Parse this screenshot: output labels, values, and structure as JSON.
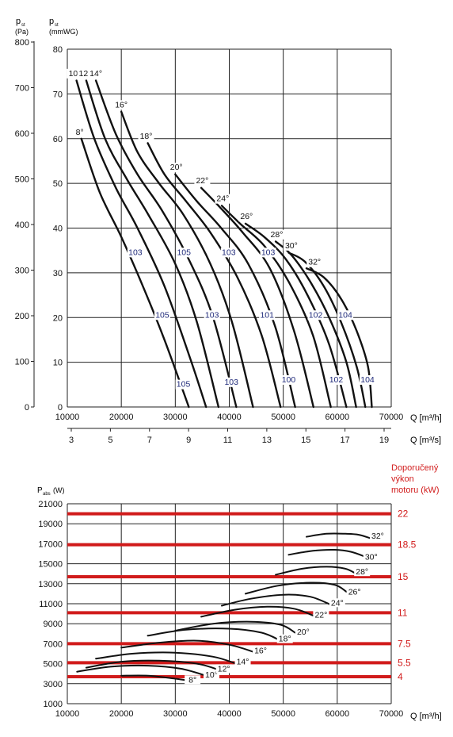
{
  "colors": {
    "curve": "#111111",
    "grid": "#222222",
    "motor_line": "#d11b1b",
    "noise_label": "#1f2a7a"
  },
  "chart_data": [
    {
      "type": "line",
      "title": "",
      "ylabel_pa": "p_st (Pa)",
      "ylabel_mmwg": "p_st (mmWG)",
      "xlabel": "Q [m³/h]",
      "xlabel_secondary": "Q [m³/s]",
      "xlim": [
        10000,
        70000
      ],
      "ylim_pa": [
        0,
        800
      ],
      "ylim_mmwg": [
        0,
        80
      ],
      "grid": true,
      "x_ticks": [
        "10000",
        "20000",
        "30000",
        "40000",
        "50000",
        "60000",
        "70000"
      ],
      "y_ticks_pa": [
        "0",
        "100",
        "200",
        "300",
        "400",
        "500",
        "600",
        "700",
        "800"
      ],
      "y_ticks_mmwg": [
        "0",
        "10",
        "20",
        "30",
        "40",
        "50",
        "60",
        "70",
        "80"
      ],
      "x2_ticks": [
        "3",
        "5",
        "7",
        "9",
        "11",
        "13",
        "15",
        "17",
        "19"
      ],
      "y_axis_label_lines": [
        "p",
        "st",
        "(Pa)"
      ],
      "y2_axis_label_lines": [
        "p",
        "st",
        "(mmWG)"
      ],
      "series": [
        {
          "name": "8°",
          "x": [
            12600,
            16000,
            20000,
            24000,
            28000,
            32500
          ],
          "y": [
            600,
            480,
            380,
            270,
            150,
            0
          ],
          "label_at": [
            12300,
            608
          ]
        },
        {
          "name": "10°",
          "x": [
            11700,
            15000,
            19000,
            23000,
            28000,
            33000,
            35700
          ],
          "y": [
            730,
            600,
            490,
            400,
            270,
            100,
            0
          ],
          "label_at": [
            11400,
            740
          ]
        },
        {
          "name": "12°",
          "x": [
            13500,
            17000,
            21000,
            25000,
            30000,
            34000,
            38000
          ],
          "y": [
            730,
            600,
            510,
            430,
            320,
            190,
            0
          ],
          "label_at": [
            13300,
            740
          ]
        },
        {
          "name": "14°",
          "x": [
            15300,
            19000,
            23000,
            27500,
            32500,
            37000,
            41300
          ],
          "y": [
            730,
            610,
            520,
            440,
            330,
            200,
            0
          ],
          "label_at": [
            15300,
            740
          ]
        },
        {
          "name": "16°",
          "x": [
            20000,
            23000,
            27000,
            31500,
            36500,
            40500,
            44400
          ],
          "y": [
            660,
            570,
            500,
            430,
            320,
            190,
            0
          ],
          "label_at": [
            20000,
            670
          ]
        },
        {
          "name": "18°",
          "x": [
            24900,
            28000,
            32000,
            36500,
            41500,
            46000,
            49500
          ],
          "y": [
            590,
            520,
            460,
            390,
            290,
            160,
            0
          ],
          "label_at": [
            24600,
            600
          ]
        },
        {
          "name": "20°",
          "x": [
            30000,
            34000,
            38500,
            43500,
            48500,
            52200
          ],
          "y": [
            520,
            460,
            400,
            320,
            180,
            0
          ],
          "label_at": [
            30200,
            530
          ]
        },
        {
          "name": "22°",
          "x": [
            34800,
            38000,
            42500,
            47500,
            52000,
            55600
          ],
          "y": [
            490,
            450,
            390,
            310,
            170,
            0
          ],
          "label_at": [
            35000,
            500
          ]
        },
        {
          "name": "24°",
          "x": [
            38600,
            42000,
            46500,
            51000,
            55500,
            58800
          ],
          "y": [
            450,
            410,
            360,
            280,
            160,
            0
          ],
          "label_at": [
            38800,
            460
          ]
        },
        {
          "name": "26°",
          "x": [
            43000,
            46500,
            50500,
            54500,
            58500,
            61700
          ],
          "y": [
            410,
            380,
            330,
            250,
            140,
            0
          ],
          "label_at": [
            43200,
            420
          ]
        },
        {
          "name": "28°",
          "x": [
            48600,
            51500,
            55000,
            58500,
            61700,
            63500
          ],
          "y": [
            370,
            340,
            280,
            200,
            100,
            0
          ],
          "label_at": [
            48800,
            380
          ]
        },
        {
          "name": "30°",
          "x": [
            51000,
            54000,
            57500,
            60700,
            63600,
            65200
          ],
          "y": [
            345,
            325,
            270,
            190,
            90,
            0
          ],
          "label_at": [
            51500,
            355
          ]
        },
        {
          "name": "32°",
          "x": [
            54300,
            57500,
            60800,
            63600,
            65700,
            66400
          ],
          "y": [
            310,
            290,
            240,
            170,
            90,
            0
          ],
          "label_at": [
            55800,
            318
          ]
        }
      ],
      "noise_labels": [
        {
          "text": "103",
          "x": 22600,
          "y": 340
        },
        {
          "text": "105",
          "x": 31600,
          "y": 340
        },
        {
          "text": "103",
          "x": 39900,
          "y": 340
        },
        {
          "text": "103",
          "x": 47200,
          "y": 340
        },
        {
          "text": "105",
          "x": 27600,
          "y": 200
        },
        {
          "text": "103",
          "x": 36800,
          "y": 200
        },
        {
          "text": "101",
          "x": 47000,
          "y": 200
        },
        {
          "text": "102",
          "x": 56000,
          "y": 200
        },
        {
          "text": "104",
          "x": 61500,
          "y": 200
        },
        {
          "text": "105",
          "x": 31500,
          "y": 45
        },
        {
          "text": "103",
          "x": 40400,
          "y": 50
        },
        {
          "text": "100",
          "x": 51000,
          "y": 55
        },
        {
          "text": "102",
          "x": 59800,
          "y": 55
        },
        {
          "text": "104",
          "x": 65600,
          "y": 55
        }
      ]
    },
    {
      "type": "line",
      "title": "",
      "ylabel": "P_abs (W)",
      "xlabel": "Q [m³/h]",
      "xlim": [
        10000,
        70000
      ],
      "ylim": [
        1000,
        21000
      ],
      "grid": true,
      "x_ticks": [
        "10000",
        "20000",
        "30000",
        "40000",
        "50000",
        "60000",
        "70000"
      ],
      "y_ticks": [
        "1000",
        "3000",
        "5000",
        "7000",
        "9000",
        "11000",
        "13000",
        "15000",
        "17000",
        "19000",
        "21000"
      ],
      "y_axis_label": "P",
      "y_axis_label_sub": "abs",
      "y_axis_label_unit": "(W)",
      "motor_title": [
        "Doporučený",
        "výkon",
        "motoru (kW)"
      ],
      "motor_lines": [
        {
          "label": "22",
          "w": 20000
        },
        {
          "label": "18.5",
          "w": 16900
        },
        {
          "label": "15",
          "w": 13700
        },
        {
          "label": "11",
          "w": 10100
        },
        {
          "label": "7.5",
          "w": 7000
        },
        {
          "label": "5.5",
          "w": 5100
        },
        {
          "label": "4",
          "w": 3700
        }
      ],
      "series": [
        {
          "name": "8°",
          "x": [
            20000,
            25000,
            30000,
            32500
          ],
          "y": [
            3800,
            3800,
            3500,
            3300
          ],
          "label_at": [
            33200,
            3200
          ]
        },
        {
          "name": "10°",
          "x": [
            11800,
            18000,
            25000,
            31000,
            35700
          ],
          "y": [
            4200,
            4700,
            4800,
            4500,
            3800
          ],
          "label_at": [
            36700,
            3700
          ]
        },
        {
          "name": "12°",
          "x": [
            13500,
            20000,
            27000,
            34000,
            38000
          ],
          "y": [
            4600,
            5200,
            5300,
            5000,
            4400
          ],
          "label_at": [
            39000,
            4300
          ]
        },
        {
          "name": "14°",
          "x": [
            15300,
            22000,
            30000,
            37000,
            41300
          ],
          "y": [
            5500,
            6000,
            6100,
            5700,
            5000
          ],
          "label_at": [
            42500,
            5000
          ]
        },
        {
          "name": "16°",
          "x": [
            20000,
            27000,
            34000,
            40000,
            44400
          ],
          "y": [
            6600,
            7100,
            7300,
            6900,
            6200
          ],
          "label_at": [
            45800,
            6100
          ]
        },
        {
          "name": "18°",
          "x": [
            24900,
            32000,
            40000,
            46000,
            49500
          ],
          "y": [
            7800,
            8400,
            8500,
            8100,
            7300
          ],
          "label_at": [
            50300,
            7300
          ]
        },
        {
          "name": "20°",
          "x": [
            30000,
            37000,
            44000,
            49500,
            52200
          ],
          "y": [
            8300,
            9000,
            9200,
            8900,
            8100
          ],
          "label_at": [
            53700,
            8000
          ]
        },
        {
          "name": "22°",
          "x": [
            34800,
            41000,
            47000,
            52000,
            55600
          ],
          "y": [
            9700,
            10400,
            10700,
            10500,
            9800
          ],
          "label_at": [
            57000,
            9700
          ]
        },
        {
          "name": "24°",
          "x": [
            38600,
            44000,
            50000,
            55000,
            58800
          ],
          "y": [
            10800,
            11500,
            11900,
            11700,
            10900
          ],
          "label_at": [
            60000,
            10900
          ]
        },
        {
          "name": "26°",
          "x": [
            43000,
            49000,
            55000,
            59500,
            61700
          ],
          "y": [
            12000,
            12800,
            13100,
            12900,
            12200
          ],
          "label_at": [
            63200,
            12000
          ]
        },
        {
          "name": "28°",
          "x": [
            48600,
            53500,
            58000,
            61500,
            63500
          ],
          "y": [
            13900,
            14500,
            14700,
            14500,
            14000
          ],
          "label_at": [
            64600,
            14000
          ]
        },
        {
          "name": "30°",
          "x": [
            51000,
            55500,
            59500,
            62500,
            65200
          ],
          "y": [
            15900,
            16300,
            16400,
            16200,
            15700
          ],
          "label_at": [
            66300,
            15500
          ]
        },
        {
          "name": "32°",
          "x": [
            54300,
            58000,
            61500,
            64000,
            66400
          ],
          "y": [
            17700,
            18000,
            18000,
            17900,
            17500
          ],
          "label_at": [
            67500,
            17600
          ]
        }
      ]
    }
  ]
}
